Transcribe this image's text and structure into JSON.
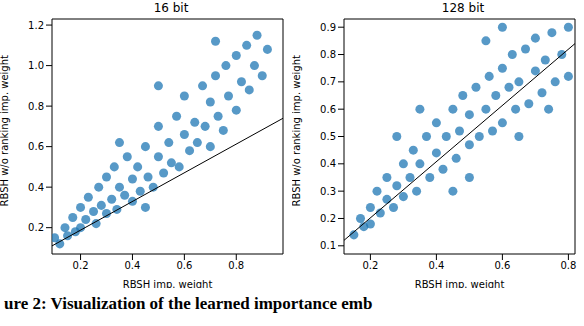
{
  "caption": "ure 2: Visualization of the learned importance emb",
  "chart_data": [
    {
      "type": "scatter",
      "title": "16 bit",
      "x_label": "RBSH imp. weight",
      "y_label": "RBSH w/o ranking imp. weight",
      "xlim": [
        0.09,
        0.98
      ],
      "ylim": [
        0.07,
        1.23
      ],
      "xticks": [
        0.2,
        0.4,
        0.6,
        0.8
      ],
      "yticks": [
        0.2,
        0.4,
        0.6,
        0.8,
        {
          "value": 1,
          "label": "1.0"
        },
        1.2
      ],
      "series": [
        {
          "type": "scatter",
          "color": "#1f77b4",
          "marker": "circle",
          "x": [
            0.1,
            0.12,
            0.14,
            0.15,
            0.17,
            0.18,
            0.2,
            0.2,
            0.22,
            0.23,
            0.25,
            0.26,
            0.27,
            0.28,
            0.3,
            0.3,
            0.32,
            0.33,
            0.34,
            0.35,
            0.37,
            0.38,
            0.4,
            0.4,
            0.42,
            0.43,
            0.45,
            0.46,
            0.48,
            0.5,
            0.5,
            0.52,
            0.54,
            0.55,
            0.57,
            0.58,
            0.6,
            0.6,
            0.62,
            0.64,
            0.65,
            0.67,
            0.68,
            0.7,
            0.7,
            0.72,
            0.73,
            0.75,
            0.76,
            0.77,
            0.8,
            0.8,
            0.82,
            0.84,
            0.85,
            0.87,
            0.88,
            0.9,
            0.92,
            0.5,
            0.45,
            0.72,
            0.35
          ],
          "y": [
            0.15,
            0.12,
            0.2,
            0.16,
            0.25,
            0.18,
            0.3,
            0.2,
            0.24,
            0.35,
            0.28,
            0.22,
            0.4,
            0.31,
            0.27,
            0.45,
            0.34,
            0.5,
            0.29,
            0.4,
            0.36,
            0.55,
            0.33,
            0.44,
            0.5,
            0.38,
            0.6,
            0.45,
            0.4,
            0.55,
            0.7,
            0.47,
            0.62,
            0.52,
            0.75,
            0.5,
            0.66,
            0.85,
            0.58,
            0.72,
            0.62,
            0.9,
            0.7,
            0.6,
            0.82,
            0.95,
            0.75,
            0.68,
            1.0,
            0.85,
            0.78,
            1.05,
            0.92,
            1.1,
            0.88,
            1.0,
            1.15,
            0.95,
            1.08,
            0.9,
            0.3,
            1.12,
            0.62
          ]
        },
        {
          "type": "line",
          "color": "#000000",
          "x": [
            0.09,
            0.98
          ],
          "y": [
            0.11,
            0.74
          ]
        }
      ]
    },
    {
      "type": "scatter",
      "title": "128 bit",
      "x_label": "RBSH imp. weight",
      "y_label": "RBSH w/o ranking imp. weight",
      "xlim": [
        0.12,
        0.82
      ],
      "ylim": [
        0.07,
        0.93
      ],
      "xticks": [
        0.2,
        0.4,
        0.6,
        0.8
      ],
      "yticks": [
        0.1,
        0.2,
        0.3,
        0.4,
        0.5,
        0.6,
        0.7,
        0.8,
        0.9
      ],
      "series": [
        {
          "type": "scatter",
          "color": "#1f77b4",
          "marker": "circle",
          "x": [
            0.15,
            0.17,
            0.18,
            0.2,
            0.2,
            0.22,
            0.23,
            0.25,
            0.25,
            0.27,
            0.28,
            0.3,
            0.3,
            0.32,
            0.33,
            0.34,
            0.35,
            0.37,
            0.38,
            0.4,
            0.4,
            0.42,
            0.43,
            0.45,
            0.46,
            0.47,
            0.48,
            0.5,
            0.5,
            0.52,
            0.53,
            0.55,
            0.56,
            0.57,
            0.58,
            0.6,
            0.6,
            0.62,
            0.63,
            0.64,
            0.65,
            0.67,
            0.68,
            0.7,
            0.7,
            0.72,
            0.73,
            0.75,
            0.76,
            0.78,
            0.8,
            0.8,
            0.35,
            0.45,
            0.55,
            0.65,
            0.28,
            0.5,
            0.6,
            0.74
          ],
          "y": [
            0.14,
            0.2,
            0.17,
            0.24,
            0.18,
            0.3,
            0.22,
            0.27,
            0.35,
            0.24,
            0.32,
            0.4,
            0.28,
            0.35,
            0.45,
            0.3,
            0.4,
            0.5,
            0.35,
            0.44,
            0.55,
            0.38,
            0.5,
            0.6,
            0.42,
            0.52,
            0.65,
            0.47,
            0.58,
            0.68,
            0.5,
            0.6,
            0.72,
            0.52,
            0.65,
            0.75,
            0.55,
            0.68,
            0.8,
            0.6,
            0.7,
            0.82,
            0.62,
            0.74,
            0.86,
            0.66,
            0.78,
            0.88,
            0.7,
            0.8,
            0.9,
            0.72,
            0.6,
            0.3,
            0.85,
            0.5,
            0.5,
            0.35,
            0.9,
            0.6
          ]
        },
        {
          "type": "line",
          "color": "#000000",
          "x": [
            0.12,
            0.82
          ],
          "y": [
            0.12,
            0.84
          ]
        }
      ]
    }
  ]
}
